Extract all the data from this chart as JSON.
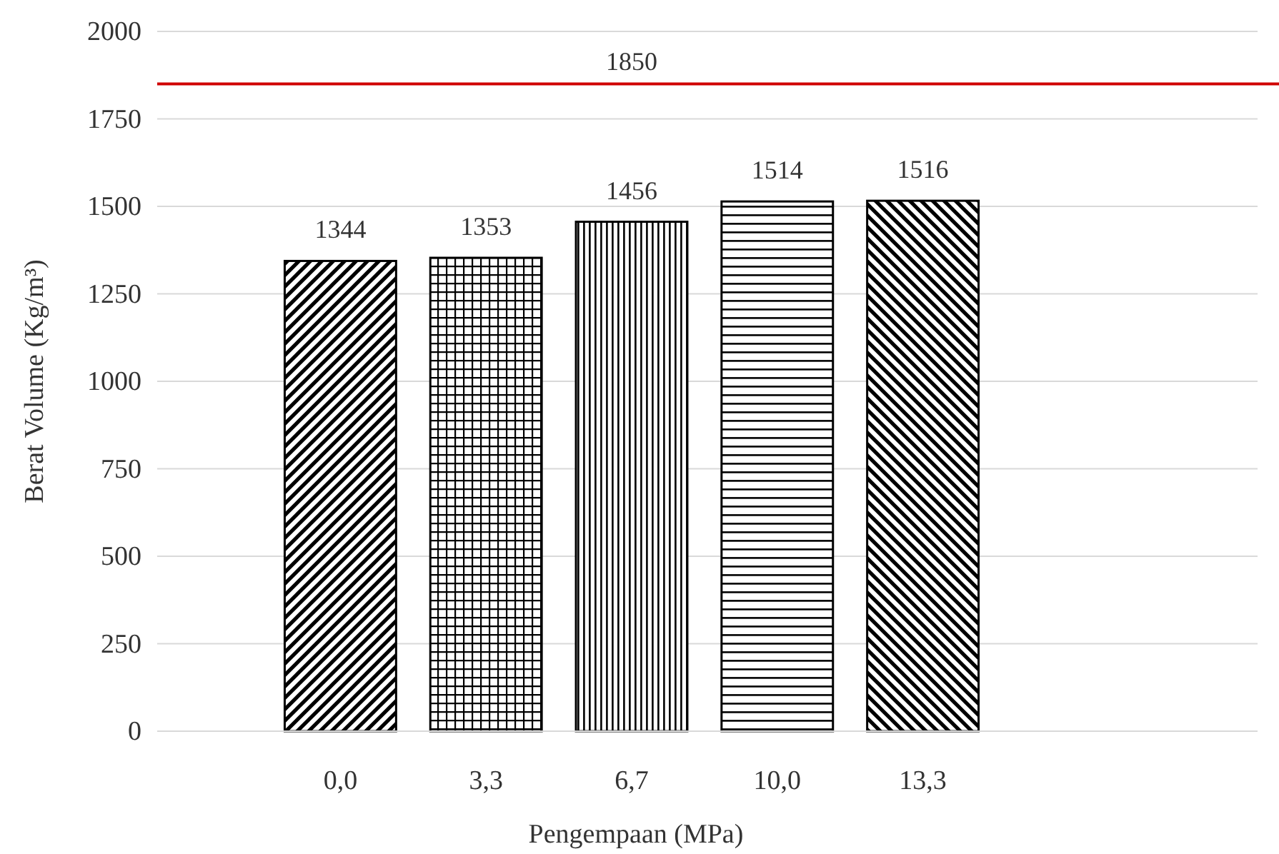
{
  "chart_data": {
    "type": "bar",
    "xlabel": "Pengempaan (MPa)",
    "ylabel": "Berat Volume (Kg/m³)",
    "categories": [
      "0,0",
      "3,3",
      "6,7",
      "10,0",
      "13,3"
    ],
    "values": [
      1344,
      1353,
      1456,
      1514,
      1516
    ],
    "color": "#000000",
    "ylim": [
      0,
      2000
    ],
    "yticks": [
      0,
      250,
      500,
      750,
      1000,
      1250,
      1500,
      1750,
      2000
    ],
    "grid": "y",
    "data_labels": true,
    "ref_lines": [
      {
        "axis": "y",
        "value": 1850,
        "label": "1850",
        "color": "#d00000"
      }
    ]
  }
}
